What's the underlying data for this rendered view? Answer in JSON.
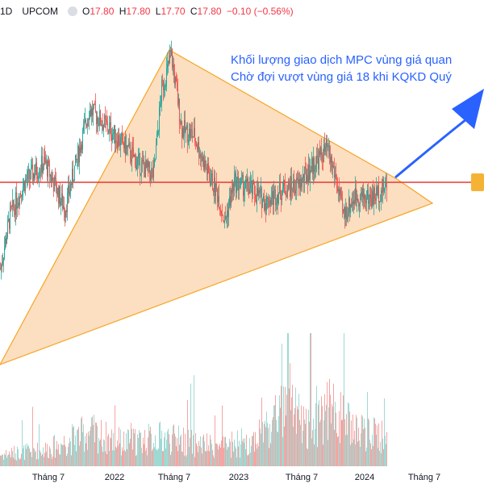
{
  "header": {
    "symbol": "1D",
    "exchange": "UPCOM",
    "ohlc": [
      {
        "k": "O",
        "v": "17.80"
      },
      {
        "k": "H",
        "v": "17.80"
      },
      {
        "k": "L",
        "v": "17.70"
      },
      {
        "k": "C",
        "v": "17.80"
      }
    ],
    "change": "−0.10 (−0.56%)"
  },
  "annotation": {
    "line1": "Khối lượng giao dịch MPC vùng giá quan",
    "line2": "Chờ đợi vượt vùng giá 18 khi KQKD Quý"
  },
  "colors": {
    "up": "#26a69a",
    "down": "#ef5350",
    "triangle_fill": "#fbd8b6",
    "triangle_stroke": "#f5a623",
    "resistance": "#e53935",
    "arrow": "#2962ff",
    "marker": "#f5b335"
  },
  "chart_data": {
    "type": "candlestick",
    "x_ticks": [
      "Tháng 7",
      "2022",
      "Tháng 7",
      "2023",
      "Tháng 7",
      "2024",
      "Tháng 7"
    ],
    "resistance_level": 18,
    "price_keypoints": [
      [
        0,
        11.5
      ],
      [
        12,
        15.5
      ],
      [
        30,
        18.0
      ],
      [
        55,
        19.5
      ],
      [
        80,
        16.0
      ],
      [
        110,
        23.5
      ],
      [
        135,
        22.0
      ],
      [
        150,
        21.0
      ],
      [
        170,
        19.5
      ],
      [
        190,
        18.5
      ],
      [
        200,
        25.0
      ],
      [
        212,
        27.5
      ],
      [
        225,
        22.0
      ],
      [
        240,
        21.5
      ],
      [
        255,
        19.0
      ],
      [
        270,
        17.0
      ],
      [
        278,
        15.0
      ],
      [
        290,
        18.0
      ],
      [
        310,
        17.5
      ],
      [
        330,
        16.5
      ],
      [
        350,
        17.5
      ],
      [
        370,
        17.8
      ],
      [
        390,
        19.5
      ],
      [
        405,
        20.5
      ],
      [
        415,
        18.5
      ],
      [
        425,
        15.5
      ],
      [
        440,
        17.0
      ],
      [
        460,
        16.8
      ],
      [
        480,
        17.8
      ]
    ],
    "volume_keypoints": [
      [
        0,
        0.2
      ],
      [
        60,
        0.3
      ],
      [
        110,
        0.6
      ],
      [
        150,
        0.4
      ],
      [
        200,
        0.5
      ],
      [
        260,
        0.35
      ],
      [
        300,
        0.3
      ],
      [
        355,
        1.0
      ],
      [
        380,
        0.7
      ],
      [
        410,
        1.0
      ],
      [
        440,
        0.6
      ],
      [
        480,
        0.5
      ]
    ]
  }
}
